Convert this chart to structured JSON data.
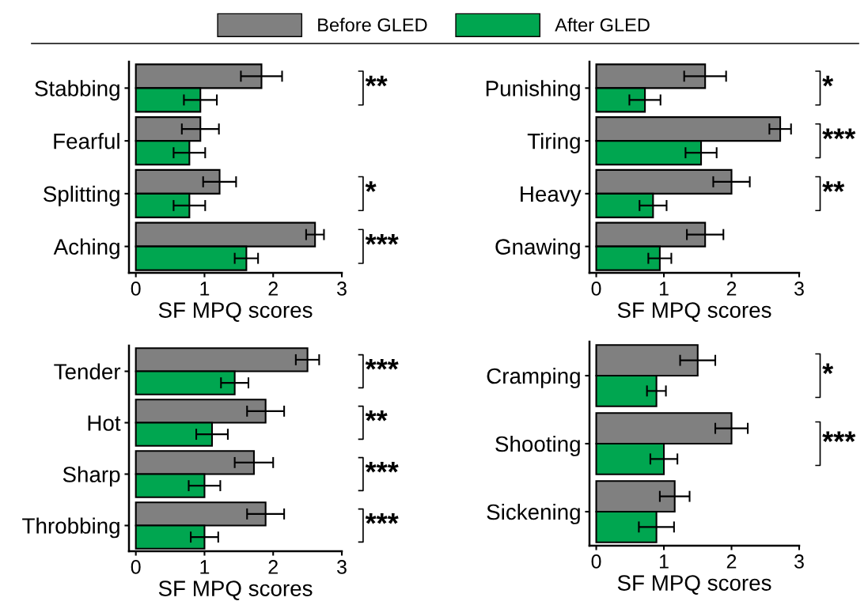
{
  "chart_data": [
    {
      "type": "bar",
      "orientation": "horizontal",
      "categories": [
        "Stabbing",
        "Fearful",
        "Splitting",
        "Aching"
      ],
      "xlabel": "SF MPQ scores",
      "xlim": [
        -0.1,
        3
      ],
      "xticks": [
        0,
        1,
        2,
        3
      ],
      "legend": "top",
      "series": [
        {
          "name": "Before GLED",
          "color": "#808080",
          "values": [
            1.83,
            0.94,
            1.22,
            2.61
          ],
          "errors": [
            0.3,
            0.27,
            0.24,
            0.13
          ]
        },
        {
          "name": "After GLED",
          "color": "#00a650",
          "values": [
            0.94,
            0.78,
            0.78,
            1.61
          ],
          "errors": [
            0.24,
            0.23,
            0.23,
            0.17
          ]
        }
      ],
      "annotations": [
        "**",
        null,
        "*",
        "***"
      ]
    },
    {
      "type": "bar",
      "orientation": "horizontal",
      "categories": [
        "Punishing",
        "Tiring",
        "Heavy",
        "Gnawing"
      ],
      "xlabel": "SF MPQ scores",
      "xlim": [
        -0.1,
        3
      ],
      "xticks": [
        0,
        1,
        2,
        3
      ],
      "series": [
        {
          "color": "#808080",
          "values": [
            1.61,
            2.72,
            2.0,
            1.61
          ],
          "errors": [
            0.31,
            0.16,
            0.27,
            0.27
          ]
        },
        {
          "color": "#00a650",
          "values": [
            0.72,
            1.55,
            0.84,
            0.94
          ],
          "errors": [
            0.23,
            0.23,
            0.2,
            0.17
          ]
        }
      ],
      "annotations": [
        "*",
        "***",
        "**",
        null
      ]
    },
    {
      "type": "bar",
      "orientation": "horizontal",
      "categories": [
        "Tender",
        "Hot",
        "Sharp",
        "Throbbing"
      ],
      "xlabel": "SF MPQ scores",
      "xlim": [
        -0.1,
        3
      ],
      "xticks": [
        0,
        1,
        2,
        3
      ],
      "series": [
        {
          "color": "#808080",
          "values": [
            2.5,
            1.89,
            1.72,
            1.89
          ],
          "errors": [
            0.17,
            0.27,
            0.28,
            0.27
          ]
        },
        {
          "color": "#00a650",
          "values": [
            1.44,
            1.11,
            1.0,
            1.0
          ],
          "errors": [
            0.2,
            0.23,
            0.23,
            0.2
          ]
        }
      ],
      "annotations": [
        "***",
        "**",
        "***",
        "***"
      ]
    },
    {
      "type": "bar",
      "orientation": "horizontal",
      "categories": [
        "Cramping",
        "Shooting",
        "Sickening"
      ],
      "xlabel": "SF MPQ scores",
      "xlim": [
        -0.1,
        3
      ],
      "xticks": [
        0,
        1,
        2,
        3
      ],
      "series": [
        {
          "color": "#808080",
          "values": [
            1.5,
            2.0,
            1.16
          ],
          "errors": [
            0.26,
            0.24,
            0.22
          ]
        },
        {
          "color": "#00a650",
          "values": [
            0.89,
            1.0,
            0.89
          ],
          "errors": [
            0.14,
            0.2,
            0.26
          ]
        }
      ],
      "annotations": [
        "*",
        "***",
        null
      ]
    }
  ]
}
